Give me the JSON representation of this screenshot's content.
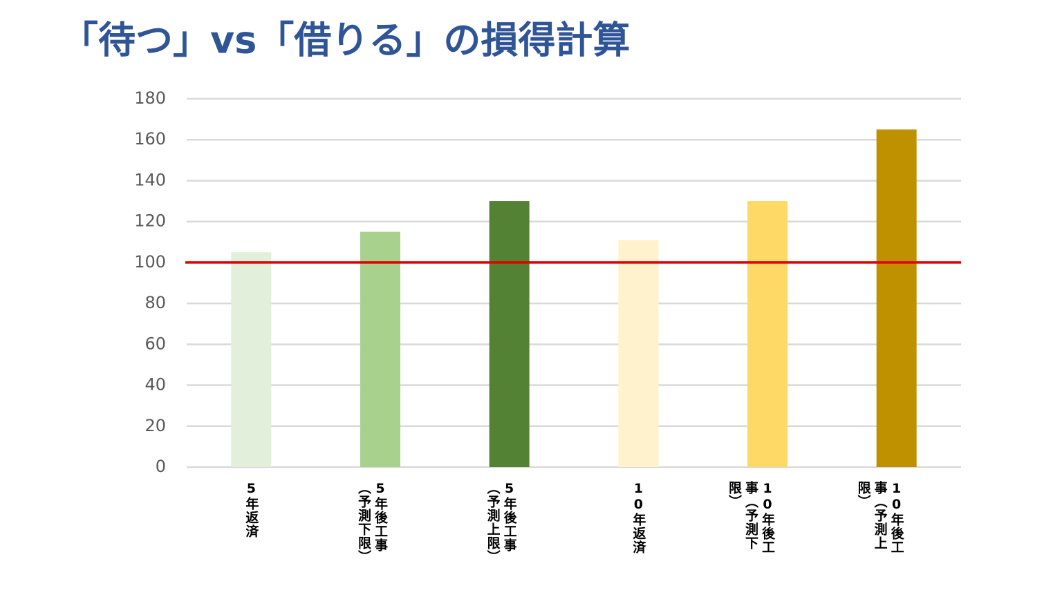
{
  "chart_data": {
    "type": "bar",
    "title": "「待つ」vs「借りる」の損得計算",
    "categories": [
      "5年返済",
      "5年後工事（予測下限）",
      "5年後工事（予測上限）",
      "10年返済",
      "10年後工事（予測下限）",
      "10年後工事（予測上限）"
    ],
    "values": [
      105,
      115,
      130,
      111,
      130,
      165
    ],
    "colors": [
      "#e2efda",
      "#a9d18e",
      "#548235",
      "#fff2cc",
      "#ffd966",
      "#bf9000"
    ],
    "ylim": [
      0,
      180
    ],
    "yticks": [
      0,
      20,
      40,
      60,
      80,
      100,
      120,
      140,
      160,
      180
    ],
    "grid": true,
    "reference_line": {
      "value": 100,
      "color": "#e00000"
    }
  }
}
